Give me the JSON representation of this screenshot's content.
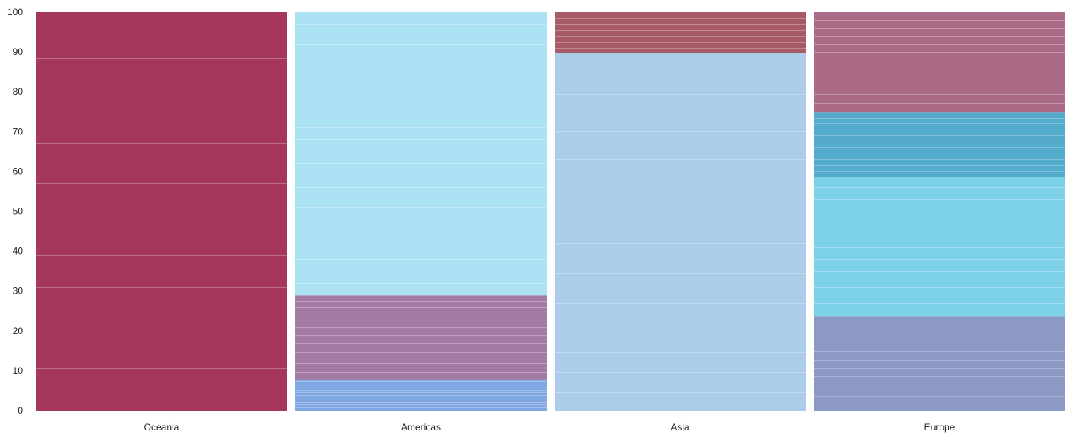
{
  "chart_data": {
    "type": "bar",
    "stacked": true,
    "percent": true,
    "ylim": [
      0,
      100
    ],
    "yticks": [
      0,
      10,
      20,
      30,
      40,
      50,
      60,
      70,
      80,
      90,
      100
    ],
    "categories": [
      "Oceania",
      "Americas",
      "Asia",
      "Europe"
    ],
    "grid": false,
    "legend": "none",
    "title": "",
    "xlabel": "",
    "ylabel": "",
    "series": [
      {
        "category": "Oceania",
        "segments": [
          {
            "from": 0,
            "to": 100,
            "color": "#a5385a",
            "sublines": [
              5,
              10.5,
              16.5,
              31,
              39,
              57,
              67,
              88.5
            ]
          }
        ]
      },
      {
        "category": "Americas",
        "segments": [
          {
            "from": 0,
            "to": 7.8,
            "color": "#7fa8e3",
            "sublines": [
              0.7,
              1.5,
              2.2,
              3,
              3.7,
              4.5,
              5.2,
              6,
              6.7,
              7.3
            ]
          },
          {
            "from": 7.8,
            "to": 28.9,
            "color": "#a37ca6",
            "sublines": [
              9.5,
              12,
              14.5,
              17,
              19,
              21,
              23.5,
              26,
              27.5
            ]
          },
          {
            "from": 28.9,
            "to": 100,
            "color": "#abe3f4",
            "sublines": [
              32,
              38,
              45,
              51,
              56,
              62,
              68,
              71,
              80,
              85,
              92,
              97
            ]
          }
        ]
      },
      {
        "category": "Asia",
        "segments": [
          {
            "from": 0,
            "to": 89.7,
            "color": "#abcdea",
            "sublines": [
              4.5,
              9.5,
              14.5,
              27,
              34.5,
              42,
              50,
              63,
              70,
              79.5
            ]
          },
          {
            "from": 89.7,
            "to": 100,
            "color": "#a85a66",
            "sublines": [
              91,
              92.5,
              94,
              95.5,
              97,
              98.5
            ]
          }
        ]
      },
      {
        "category": "Europe",
        "segments": [
          {
            "from": 0,
            "to": 23.7,
            "color": "#8b99c4",
            "sublines": [
              3.5,
              6,
              8.5,
              10.5,
              12.5,
              15,
              17.5,
              19.5,
              21.5
            ]
          },
          {
            "from": 23.7,
            "to": 58.6,
            "color": "#7cd0e8",
            "sublines": [
              27,
              31,
              35,
              38,
              41,
              44,
              47,
              50,
              53,
              56
            ]
          },
          {
            "from": 58.6,
            "to": 74.8,
            "color": "#55abcc",
            "sublines": [
              60,
              61.5,
              63,
              64.5,
              66,
              67.5,
              69,
              70.5,
              72,
              73.5
            ]
          },
          {
            "from": 74.8,
            "to": 100,
            "color": "#ab6b86",
            "sublines": [
              77,
              79.5,
              82,
              84,
              86,
              88,
              90,
              92,
              94,
              96,
              98
            ]
          }
        ]
      }
    ]
  }
}
